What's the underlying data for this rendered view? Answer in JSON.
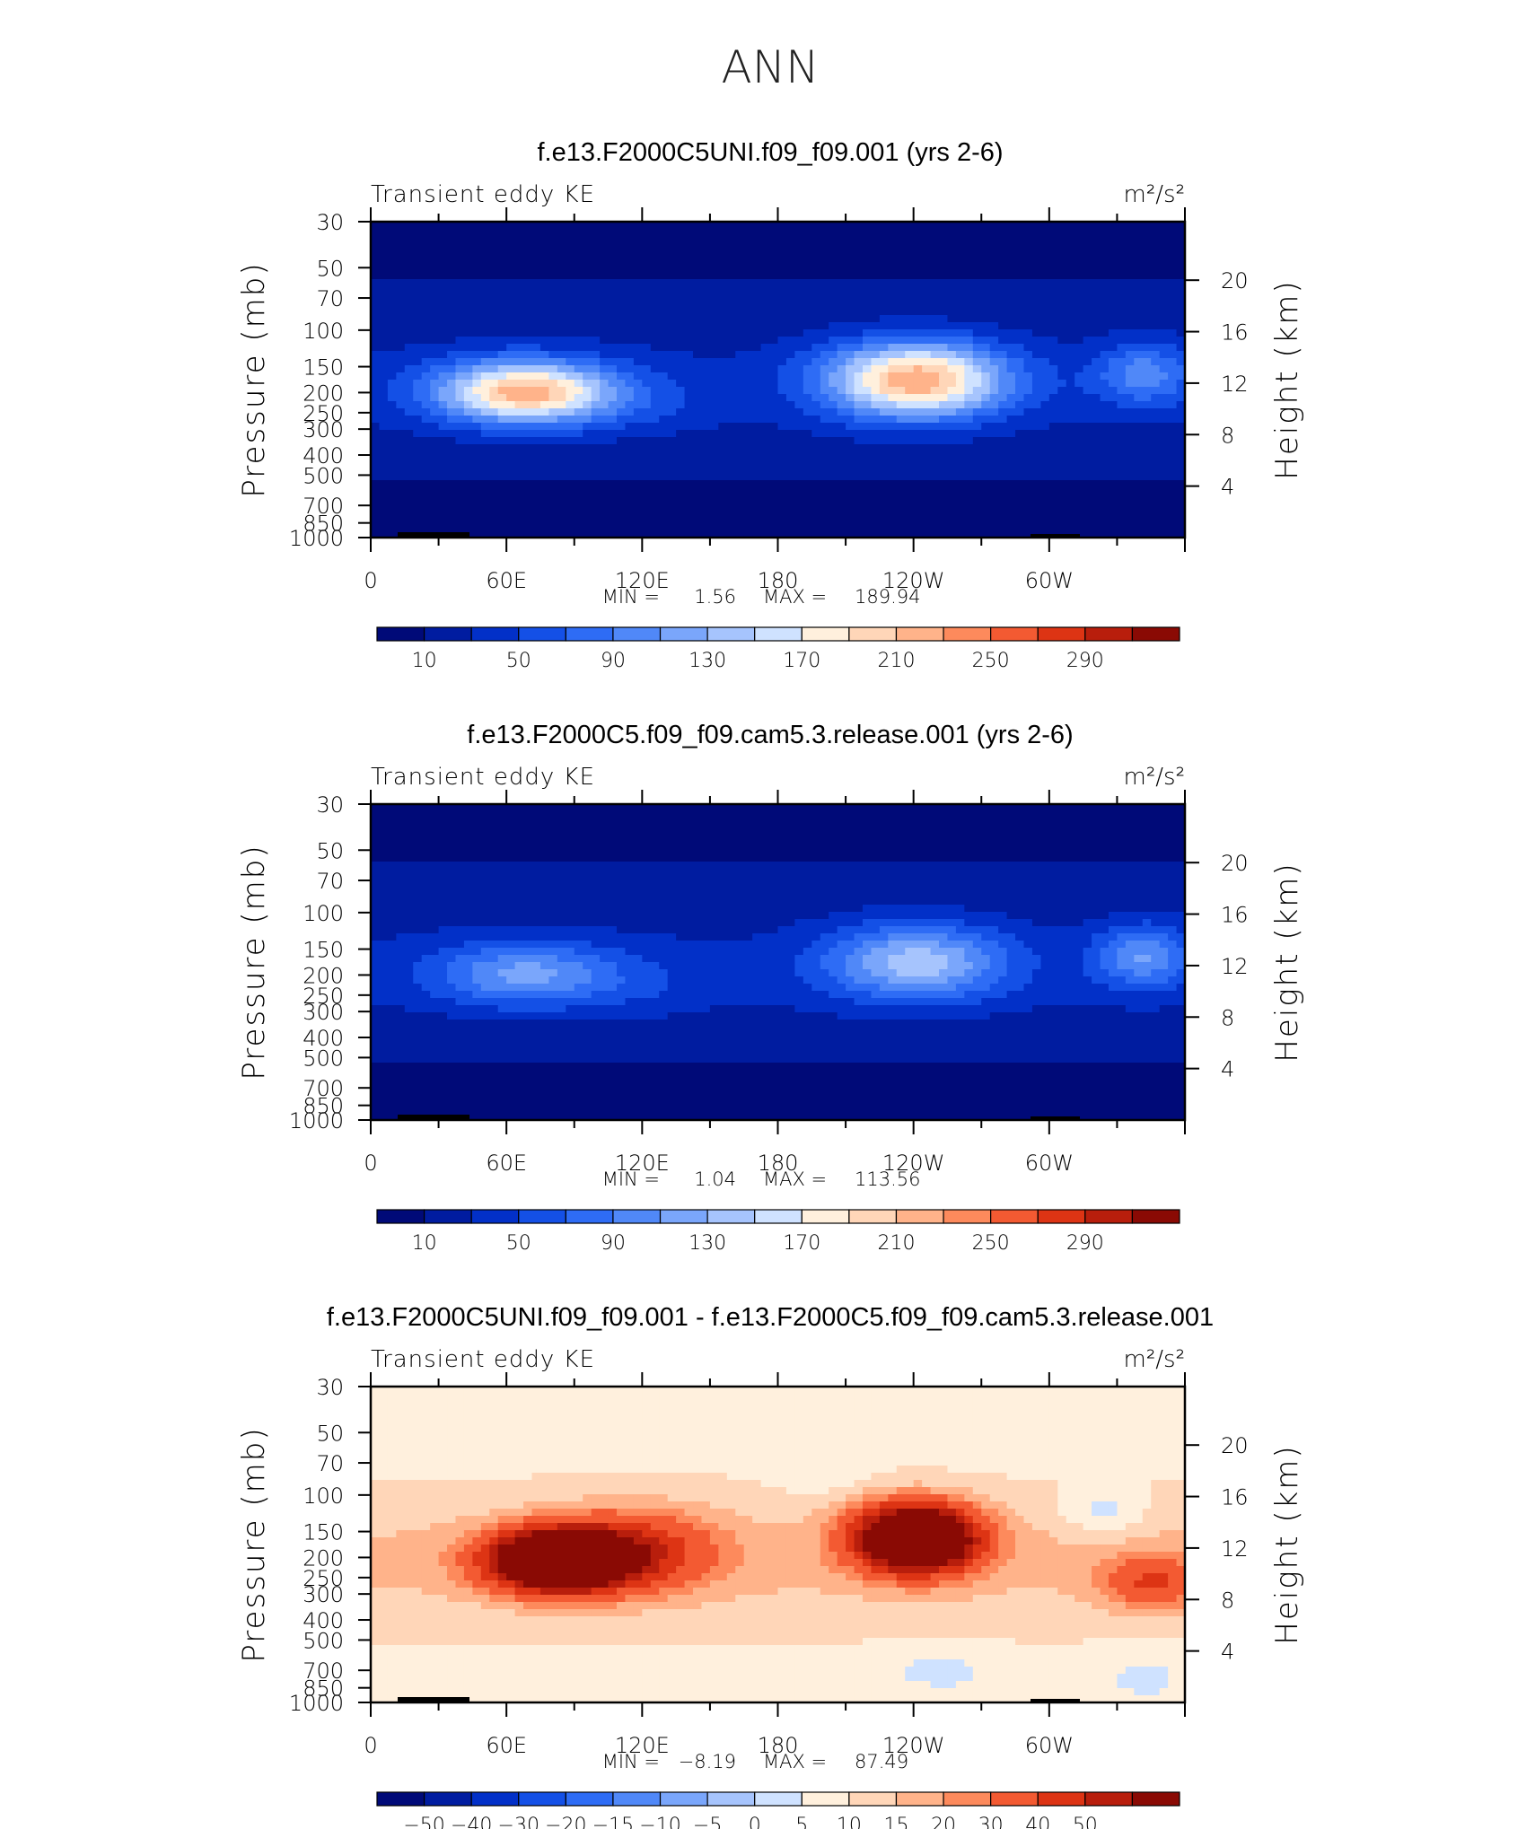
{
  "page": {
    "title": "ANN"
  },
  "colors": {
    "ke_scale": [
      "#000a78",
      "#001ca0",
      "#0230c8",
      "#1450e6",
      "#2e6cf5",
      "#5088f8",
      "#7aa6fb",
      "#a6c4fd",
      "#cfe2ff",
      "#fff0dd",
      "#ffd6b8",
      "#ffb38a",
      "#fd8a5c",
      "#f35a32",
      "#dd3414",
      "#b81e0c",
      "#8a0a04"
    ],
    "diff_scale": [
      "#000a78",
      "#001ca0",
      "#0230c8",
      "#1450e6",
      "#2e6cf5",
      "#5088f8",
      "#7aa6fb",
      "#a6c4fd",
      "#cfe2ff",
      "#fff0dd",
      "#ffd6b8",
      "#ffb38a",
      "#fd8a5c",
      "#f35a32",
      "#dd3414",
      "#b81e0c",
      "#8a0a04"
    ]
  },
  "chart_data": [
    {
      "type": "heatmap",
      "title": "f.e13.F2000C5UNI.f09_f09.001 (yrs 2-6)",
      "left_label": "Transient eddy KE",
      "units": "m²/s²",
      "ylabel": "Pressure (mb)",
      "ylabel_right": "Height (km)",
      "x_ticks": [
        "0",
        "60E",
        "120E",
        "180",
        "120W",
        "60W"
      ],
      "y_ticks": [
        "30",
        "50",
        "70",
        "100",
        "150",
        "200",
        "250",
        "300",
        "400",
        "500",
        "700",
        "850",
        "1000"
      ],
      "y_ticks_right": [
        "20",
        "16",
        "12",
        "8",
        "4"
      ],
      "stats": {
        "min_label": "MIN =",
        "min": "1.56",
        "max_label": "MAX =",
        "max": "189.94"
      },
      "colorbar": {
        "labels": [
          "10",
          "50",
          "90",
          "130",
          "170",
          "210",
          "250",
          "290"
        ]
      }
    },
    {
      "type": "heatmap",
      "title": "f.e13.F2000C5.f09_f09.cam5.3.release.001 (yrs 2-6)",
      "left_label": "Transient eddy KE",
      "units": "m²/s²",
      "ylabel": "Pressure (mb)",
      "ylabel_right": "Height (km)",
      "x_ticks": [
        "0",
        "60E",
        "120E",
        "180",
        "120W",
        "60W"
      ],
      "y_ticks": [
        "30",
        "50",
        "70",
        "100",
        "150",
        "200",
        "250",
        "300",
        "400",
        "500",
        "700",
        "850",
        "1000"
      ],
      "y_ticks_right": [
        "20",
        "16",
        "12",
        "8",
        "4"
      ],
      "stats": {
        "min_label": "MIN =",
        "min": "1.04",
        "max_label": "MAX =",
        "max": "113.56"
      },
      "colorbar": {
        "labels": [
          "10",
          "50",
          "90",
          "130",
          "170",
          "210",
          "250",
          "290"
        ]
      }
    },
    {
      "type": "heatmap",
      "title": "f.e13.F2000C5UNI.f09_f09.001 - f.e13.F2000C5.f09_f09.cam5.3.release.001",
      "left_label": "Transient eddy KE",
      "units": "m²/s²",
      "ylabel": "Pressure (mb)",
      "ylabel_right": "Height (km)",
      "x_ticks": [
        "0",
        "60E",
        "120E",
        "180",
        "120W",
        "60W"
      ],
      "y_ticks": [
        "30",
        "50",
        "70",
        "100",
        "150",
        "200",
        "250",
        "300",
        "400",
        "500",
        "700",
        "850",
        "1000"
      ],
      "y_ticks_right": [
        "20",
        "16",
        "12",
        "8",
        "4"
      ],
      "stats": {
        "min_label": "MIN =",
        "min": "−8.19",
        "max_label": "MAX =",
        "max": "87.49"
      },
      "colorbar": {
        "labels": [
          "−50",
          "−40",
          "−30",
          "−20",
          "−15",
          "−10",
          "−5",
          "0",
          "5",
          "10",
          "15",
          "20",
          "30",
          "40",
          "50"
        ]
      }
    }
  ]
}
